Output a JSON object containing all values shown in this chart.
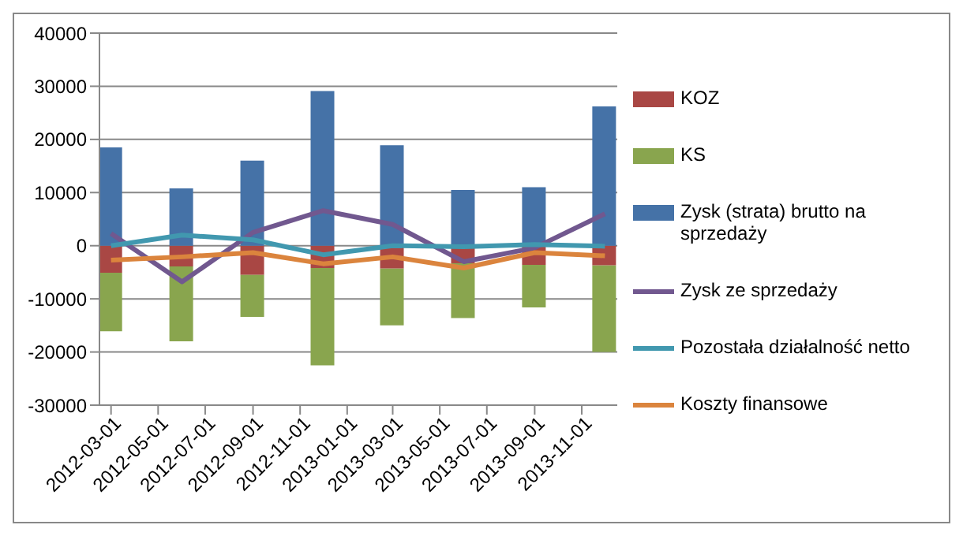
{
  "chart_data": {
    "type": "bar",
    "stacked": true,
    "x": [
      "2012-03-01",
      "2012-06-01",
      "2012-09-01",
      "2012-12-01",
      "2013-03-01",
      "2013-06-01",
      "2013-09-01",
      "2013-12-01"
    ],
    "xlim": [
      "2012-02-15",
      "2013-12-17"
    ],
    "xticks": [
      "2012-03-01",
      "2012-05-01",
      "2012-07-01",
      "2012-09-01",
      "2012-11-01",
      "2013-01-01",
      "2013-03-01",
      "2013-05-01",
      "2013-07-01",
      "2013-09-01",
      "2013-11-01"
    ],
    "ylim": [
      -30000,
      40000
    ],
    "yticks": [
      -30000,
      -20000,
      -10000,
      0,
      10000,
      20000,
      30000,
      40000
    ],
    "grid": "y",
    "legend": "right",
    "series": [
      {
        "name": "KOZ",
        "color": "#a94744",
        "values": [
          -5100,
          -3900,
          -5500,
          -4200,
          -4300,
          -3300,
          -3600,
          -3700
        ]
      },
      {
        "name": "KS",
        "color": "#89a54e",
        "values": [
          -11000,
          -14100,
          -7900,
          -18300,
          -10700,
          -10300,
          -8000,
          -16300
        ]
      },
      {
        "name": "Zysk (strata) brutto na sprzedaży",
        "color": "#4572a7",
        "values": [
          18500,
          10800,
          16000,
          29100,
          18900,
          10500,
          11000,
          26200
        ]
      },
      {
        "name": "Zysk ze sprzedaży",
        "type": "line",
        "color": "#71588f",
        "values": [
          2300,
          -6800,
          2500,
          6600,
          4000,
          -3000,
          -400,
          6000
        ]
      },
      {
        "name": "Pozostała działalność netto",
        "type": "line",
        "color": "#4198af",
        "values": [
          0,
          2000,
          1100,
          -1700,
          0,
          -200,
          200,
          -100
        ]
      },
      {
        "name": "Koszty finansowe",
        "type": "line",
        "color": "#db843d",
        "values": [
          -2700,
          -2100,
          -1300,
          -3400,
          -2100,
          -4200,
          -1300,
          -1900
        ]
      }
    ]
  }
}
